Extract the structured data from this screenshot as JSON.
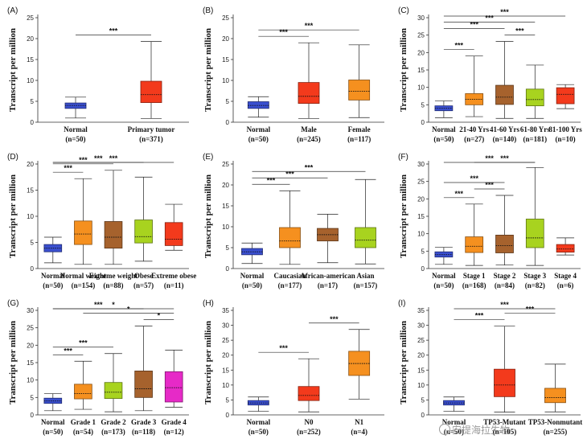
{
  "figure": {
    "watermark": "安提海拉生物"
  },
  "chart_data": [
    {
      "panel_label": "(A)",
      "type": "boxplot",
      "ylabel": "Transcript per million",
      "ylim": [
        0,
        25
      ],
      "yticks": [
        0,
        5,
        10,
        15,
        20,
        25
      ],
      "groups": [
        {
          "name": "Normal",
          "n": "(n=50)",
          "color": "#3a4fcf",
          "min": 1.0,
          "q1": 3.3,
          "median": 4.0,
          "q3": 4.6,
          "max": 6.0
        },
        {
          "name": "Primary tumor",
          "n": "(n=371)",
          "color": "#f33a1c",
          "min": 0.9,
          "q1": 4.7,
          "median": 6.6,
          "q3": 9.8,
          "max": 19.3
        }
      ],
      "significance": [
        {
          "from": 0,
          "to": 1,
          "label": "***"
        }
      ]
    },
    {
      "panel_label": "(B)",
      "type": "boxplot",
      "ylabel": "Transcript per million",
      "ylim": [
        0,
        25
      ],
      "yticks": [
        0,
        5,
        10,
        15,
        20,
        25
      ],
      "groups": [
        {
          "name": "Normal",
          "n": "(n=50)",
          "color": "#3a4fcf",
          "min": 1.2,
          "q1": 3.3,
          "median": 4.0,
          "q3": 4.9,
          "max": 6.1
        },
        {
          "name": "Male",
          "n": "(n=245)",
          "color": "#f33a1c",
          "min": 0.9,
          "q1": 4.5,
          "median": 6.2,
          "q3": 9.5,
          "max": 19.0
        },
        {
          "name": "Female",
          "n": "(n=117)",
          "color": "#f5901f",
          "min": 1.1,
          "q1": 5.3,
          "median": 7.4,
          "q3": 10.1,
          "max": 18.5
        }
      ],
      "significance": [
        {
          "from": 0,
          "to": 1,
          "label": "***"
        },
        {
          "from": 0,
          "to": 2,
          "label": "***"
        }
      ]
    },
    {
      "panel_label": "(C)",
      "type": "boxplot",
      "ylabel": "Transcript per million",
      "ylim": [
        0,
        30
      ],
      "yticks": [
        0,
        5,
        10,
        15,
        20,
        25,
        30
      ],
      "groups": [
        {
          "name": "Normal",
          "n": "(n=50)",
          "color": "#3a4fcf",
          "min": 1.3,
          "q1": 3.3,
          "median": 4.0,
          "q3": 4.7,
          "max": 6.1
        },
        {
          "name": "21-40 Yrs",
          "n": "(n=27)",
          "color": "#f5901f",
          "min": 1.6,
          "q1": 5.0,
          "median": 6.6,
          "q3": 8.2,
          "max": 19.0
        },
        {
          "name": "41-60 Yrs",
          "n": "(n=140)",
          "color": "#a6622d",
          "min": 1.1,
          "q1": 5.1,
          "median": 7.2,
          "q3": 10.6,
          "max": 23.2
        },
        {
          "name": "61-80 Yrs",
          "n": "(n=181)",
          "color": "#a8d31f",
          "min": 1.1,
          "q1": 4.7,
          "median": 6.5,
          "q3": 9.5,
          "max": 16.4
        },
        {
          "name": "81-100 Yrs",
          "n": "(n=10)",
          "color": "#f33a1c",
          "min": 3.9,
          "q1": 5.3,
          "median": 8.0,
          "q3": 9.9,
          "max": 10.8
        }
      ],
      "significance": [
        {
          "from": 0,
          "to": 1,
          "label": "***"
        },
        {
          "from": 3,
          "to": 2,
          "label": "***"
        },
        {
          "from": 0,
          "to": 2,
          "label": "***"
        },
        {
          "from": 0,
          "to": 3,
          "label": "***"
        },
        {
          "from": 0,
          "to": 4,
          "label": "***"
        }
      ]
    },
    {
      "panel_label": "(D)",
      "type": "boxplot",
      "ylabel": "Transcript per million",
      "ylim": [
        0,
        20
      ],
      "yticks": [
        0,
        5,
        10,
        15,
        20
      ],
      "groups": [
        {
          "name": "Normal",
          "n": "(n=50)",
          "color": "#3a4fcf",
          "min": 1.1,
          "q1": 3.2,
          "median": 3.9,
          "q3": 4.6,
          "max": 6.0
        },
        {
          "name": "Normal weight",
          "n": "(n=154)",
          "color": "#f5901f",
          "min": 0.8,
          "q1": 4.6,
          "median": 6.6,
          "q3": 9.1,
          "max": 17.2
        },
        {
          "name": "Extreme weight",
          "n": "(n=88)",
          "color": "#a6622d",
          "min": 0.8,
          "q1": 3.9,
          "median": 6.0,
          "q3": 9.0,
          "max": 18.8
        },
        {
          "name": "Obese",
          "n": "(n=57)",
          "color": "#a8d31f",
          "min": 1.4,
          "q1": 4.9,
          "median": 6.1,
          "q3": 9.3,
          "max": 17.5
        },
        {
          "name": "Extreme obese",
          "n": "(n=11)",
          "color": "#f33a1c",
          "min": 3.5,
          "q1": 4.4,
          "median": 5.6,
          "q3": 8.8,
          "max": 12.3
        }
      ],
      "significance": [
        {
          "from": 0,
          "to": 1,
          "label": "***"
        },
        {
          "from": 0,
          "to": 2,
          "label": "***"
        },
        {
          "from": 0,
          "to": 3,
          "label": "***"
        },
        {
          "from": 0,
          "to": 4,
          "label": "***"
        }
      ]
    },
    {
      "panel_label": "(E)",
      "type": "boxplot",
      "ylabel": "Transcript per million",
      "ylim": [
        0,
        25
      ],
      "yticks": [
        0,
        5,
        10,
        15,
        20,
        25
      ],
      "groups": [
        {
          "name": "Normal",
          "n": "(n=50)",
          "color": "#3a4fcf",
          "min": 1.2,
          "q1": 3.3,
          "median": 4.0,
          "q3": 4.8,
          "max": 6.1
        },
        {
          "name": "Caucasian",
          "n": "(n=177)",
          "color": "#f5901f",
          "min": 1.0,
          "q1": 5.0,
          "median": 6.6,
          "q3": 9.8,
          "max": 18.6
        },
        {
          "name": "African-american",
          "n": "(n=17)",
          "color": "#a6622d",
          "min": 1.4,
          "q1": 6.6,
          "median": 8.1,
          "q3": 9.6,
          "max": 13.0
        },
        {
          "name": "Asian",
          "n": "(n=157)",
          "color": "#a8d31f",
          "min": 1.1,
          "q1": 5.0,
          "median": 6.8,
          "q3": 9.8,
          "max": 21.3
        }
      ],
      "significance": [
        {
          "from": 0,
          "to": 1,
          "label": "***"
        },
        {
          "from": 0,
          "to": 2,
          "label": "***"
        },
        {
          "from": 0,
          "to": 3,
          "label": "***"
        }
      ]
    },
    {
      "panel_label": "(F)",
      "type": "boxplot",
      "ylabel": "Transcript per million",
      "ylim": [
        0,
        30
      ],
      "yticks": [
        0,
        5,
        10,
        15,
        20,
        25,
        30
      ],
      "groups": [
        {
          "name": "Normal",
          "n": "(n=50)",
          "color": "#3a4fcf",
          "min": 1.2,
          "q1": 3.3,
          "median": 4.0,
          "q3": 4.8,
          "max": 6.1
        },
        {
          "name": "Stage 1",
          "n": "(n=168)",
          "color": "#f5901f",
          "min": 0.9,
          "q1": 4.6,
          "median": 6.4,
          "q3": 9.1,
          "max": 18.5
        },
        {
          "name": "Stage 2",
          "n": "(n=84)",
          "color": "#a6622d",
          "min": 1.0,
          "q1": 4.5,
          "median": 6.6,
          "q3": 9.6,
          "max": 21.0
        },
        {
          "name": "Stage 3",
          "n": "(n=82)",
          "color": "#a8d31f",
          "min": 0.9,
          "q1": 6.0,
          "median": 8.8,
          "q3": 14.2,
          "max": 29.0
        },
        {
          "name": "Stage 4",
          "n": "(n=6)",
          "color": "#f33a1c",
          "min": 3.9,
          "q1": 4.7,
          "median": 5.6,
          "q3": 6.9,
          "max": 8.8
        }
      ],
      "significance": [
        {
          "from": 0,
          "to": 1,
          "label": "***"
        },
        {
          "from": 1,
          "to": 2,
          "label": "***"
        },
        {
          "from": 0,
          "to": 2,
          "label": "***"
        },
        {
          "from": 1,
          "to": 3,
          "label": "***"
        },
        {
          "from": 0,
          "to": 3,
          "label": "***"
        }
      ]
    },
    {
      "panel_label": "(G)",
      "type": "boxplot",
      "ylabel": "Transcript per million",
      "ylim": [
        0,
        30
      ],
      "yticks": [
        0,
        5,
        10,
        15,
        20,
        25,
        30
      ],
      "groups": [
        {
          "name": "Normal",
          "n": "(n=50)",
          "color": "#3a4fcf",
          "min": 1.2,
          "q1": 3.3,
          "median": 4.0,
          "q3": 4.8,
          "max": 6.1
        },
        {
          "name": "Grade 1",
          "n": "(n=54)",
          "color": "#f5901f",
          "min": 1.6,
          "q1": 4.6,
          "median": 6.1,
          "q3": 8.8,
          "max": 15.4
        },
        {
          "name": "Grade 2",
          "n": "(n=173)",
          "color": "#a8d31f",
          "min": 0.9,
          "q1": 4.7,
          "median": 6.5,
          "q3": 9.3,
          "max": 17.6
        },
        {
          "name": "Grade 3",
          "n": "(n=118)",
          "color": "#a6622d",
          "min": 1.2,
          "q1": 5.0,
          "median": 7.5,
          "q3": 12.6,
          "max": 25.5
        },
        {
          "name": "Grade 4",
          "n": "(n=12)",
          "color": "#e62ac7",
          "min": 2.2,
          "q1": 3.7,
          "median": 7.8,
          "q3": 12.4,
          "max": 18.6
        }
      ],
      "significance": [
        {
          "from": 0,
          "to": 1,
          "label": "***"
        },
        {
          "from": 0,
          "to": 2,
          "label": "***"
        },
        {
          "from": 3,
          "to": 4,
          "label": "*"
        },
        {
          "from": 1,
          "to": 4,
          "label": "*"
        },
        {
          "from": 0,
          "to": 3,
          "label": "***"
        },
        {
          "from": 0,
          "to": 4,
          "label": "*"
        }
      ]
    },
    {
      "panel_label": "(H)",
      "type": "boxplot",
      "ylabel": "Transcript per million",
      "ylim": [
        0,
        35
      ],
      "yticks": [
        0,
        5,
        10,
        15,
        20,
        25,
        30,
        35
      ],
      "groups": [
        {
          "name": "Normal",
          "n": "(n=50)",
          "color": "#3a4fcf",
          "min": 1.2,
          "q1": 3.3,
          "median": 4.0,
          "q3": 4.8,
          "max": 6.0
        },
        {
          "name": "N0",
          "n": "(n=252)",
          "color": "#f33a1c",
          "min": 1.0,
          "q1": 4.8,
          "median": 6.5,
          "q3": 9.5,
          "max": 18.8
        },
        {
          "name": "N1",
          "n": "(n=4)",
          "color": "#f5901f",
          "min": 5.3,
          "q1": 13.2,
          "median": 17.2,
          "q3": 21.3,
          "max": 28.6
        }
      ],
      "significance": [
        {
          "from": 0,
          "to": 1,
          "label": "***"
        },
        {
          "from": 1,
          "to": 2,
          "label": "***"
        }
      ]
    },
    {
      "panel_label": "(I)",
      "type": "boxplot",
      "ylabel": "Transcript per million",
      "ylim": [
        0,
        35
      ],
      "yticks": [
        0,
        5,
        10,
        15,
        20,
        25,
        30,
        35
      ],
      "groups": [
        {
          "name": "Normal",
          "n": "(n=50)",
          "color": "#3a4fcf",
          "min": 1.2,
          "q1": 3.3,
          "median": 4.0,
          "q3": 4.8,
          "max": 6.0
        },
        {
          "name": "TP53-Mutant",
          "n": "(n=105)",
          "color": "#f33a1c",
          "min": 0.9,
          "q1": 6.1,
          "median": 10.0,
          "q3": 15.3,
          "max": 29.7
        },
        {
          "name": "TP53-Nonmutant",
          "n": "(n=255)",
          "color": "#f5901f",
          "min": 1.0,
          "q1": 4.1,
          "median": 5.8,
          "q3": 8.9,
          "max": 17.0
        }
      ],
      "significance": [
        {
          "from": 0,
          "to": 1,
          "label": "***"
        },
        {
          "from": 1,
          "to": 2,
          "label": "***"
        },
        {
          "from": 0,
          "to": 2,
          "label": "***"
        }
      ]
    }
  ]
}
